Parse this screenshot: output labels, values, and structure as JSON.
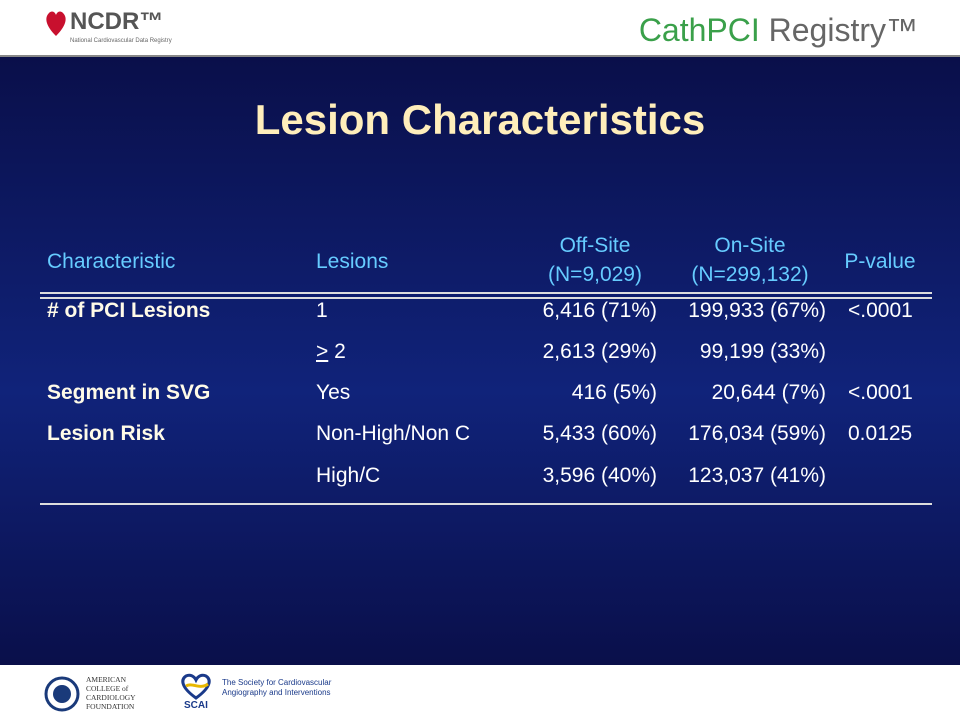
{
  "header": {
    "logo_left": "NCDR™",
    "logo_left_sub": "National Cardiovascular Data Registry",
    "logo_right_a": "CathPCI",
    "logo_right_b": " Registry™"
  },
  "title": "Lesion Characteristics",
  "table": {
    "columns": [
      "Characteristic",
      "Lesions",
      [
        "Off-Site",
        "(N=9,029)"
      ],
      [
        "On-Site",
        "(N=299,132)"
      ],
      "P-value"
    ],
    "rows": [
      [
        "# of PCI Lesions",
        "1",
        "6,416 (71%)",
        "199,933 (67%)",
        "<.0001"
      ],
      [
        "",
        {
          "underlined": ">",
          "rest": "2"
        },
        "2,613 (29%)",
        "99,199 (33%)",
        ""
      ],
      [
        "Segment in SVG",
        "Yes",
        "416 (5%)",
        "20,644 (7%)",
        "<.0001"
      ],
      [
        "Lesion Risk",
        "Non-High/Non C",
        "5,433 (60%)",
        "176,034 (59%)",
        "0.0125"
      ],
      [
        "",
        "High/C",
        "3,596 (40%)",
        "123,037 (41%)",
        ""
      ]
    ]
  },
  "footer": {
    "acc": [
      "AMERICAN",
      "COLLEGE of",
      "CARDIOLOGY",
      "FOUNDATION"
    ],
    "scai": "SCAI",
    "scai_name": [
      "The Society for Cardiovascular",
      "Angiography and Interventions"
    ]
  }
}
